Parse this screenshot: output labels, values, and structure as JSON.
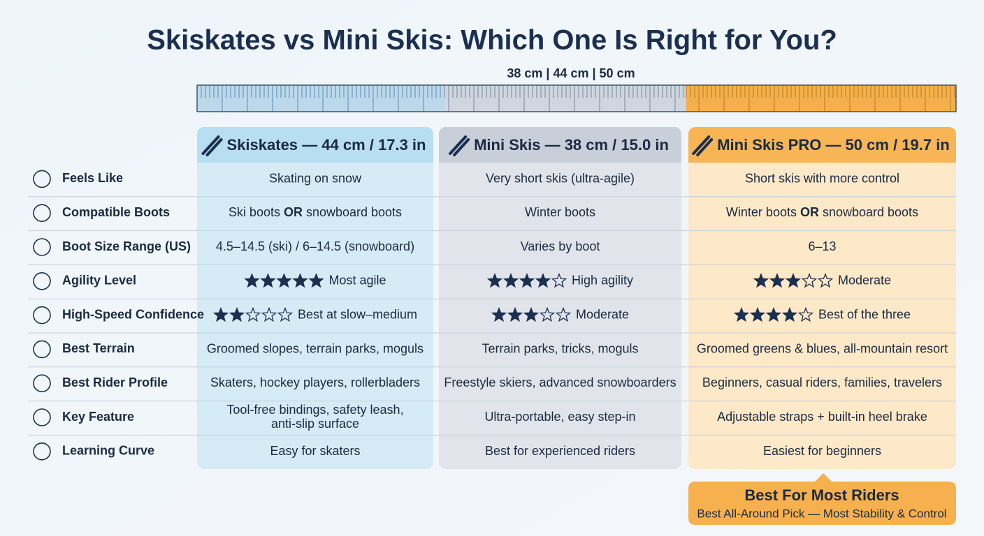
{
  "title": "Skiskates vs Mini Skis: Which One Is Right for You?",
  "ruler": {
    "label": "38 cm | 44 cm | 50 cm"
  },
  "table": {
    "columns": [
      "Skiskates — 44 cm / 17.3 in",
      "Mini Skis — 38 cm / 15.0 in",
      "Mini Skis PRO — 50 cm / 19.7 in"
    ],
    "rows": [
      {
        "label": "Feels Like",
        "cells": [
          {
            "text": "Skating on snow"
          },
          {
            "text": "Very short skis (ultra-agile)"
          },
          {
            "text": "Short skis with more control"
          }
        ]
      },
      {
        "label": "Compatible Boots",
        "cells": [
          {
            "text": "Ski boots ",
            "strong": "OR",
            "tail": " snowboard boots"
          },
          {
            "text": "Winter boots"
          },
          {
            "text": "Winter boots ",
            "strong": "OR",
            "tail": " snowboard boots"
          }
        ]
      },
      {
        "label": "Boot Size Range (US)",
        "cells": [
          {
            "text": "4.5–14.5 (ski) / 6–14.5 (snowboard)"
          },
          {
            "text": "Varies by boot"
          },
          {
            "text": "6–13"
          }
        ]
      },
      {
        "label": "Agility Level",
        "cells": [
          {
            "stars": 5,
            "max_stars": 5,
            "text": "Most agile"
          },
          {
            "stars": 4,
            "max_stars": 5,
            "text": "High agility"
          },
          {
            "stars": 3,
            "max_stars": 5,
            "text": "Moderate"
          }
        ]
      },
      {
        "label": "High-Speed Confidence",
        "cells": [
          {
            "stars": 2,
            "max_stars": 5,
            "text": "Best at slow–medium"
          },
          {
            "stars": 3,
            "max_stars": 5,
            "text": "Moderate"
          },
          {
            "stars": 4,
            "max_stars": 5,
            "text": "Best of the three"
          }
        ]
      },
      {
        "label": "Best Terrain",
        "cells": [
          {
            "text": "Groomed slopes, terrain parks, moguls"
          },
          {
            "text": "Terrain parks, tricks, moguls"
          },
          {
            "text": "Groomed greens & blues, all-mountain resort"
          }
        ]
      },
      {
        "label": "Best Rider Profile",
        "cells": [
          {
            "text": "Skaters, hockey players, rollerbladers"
          },
          {
            "text": "Freestyle skiers, advanced snowboarders"
          },
          {
            "text": "Beginners, casual riders, families, travelers"
          }
        ]
      },
      {
        "label": "Key Feature",
        "cells": [
          {
            "lines": [
              "Tool-free bindings, safety leash,",
              "anti-slip surface"
            ]
          },
          {
            "text": "Ultra-portable, easy step-in"
          },
          {
            "text": "Adjustable straps + built-in heel brake"
          }
        ]
      },
      {
        "label": "Learning Curve",
        "cells": [
          {
            "text": "Easy for skaters"
          },
          {
            "text": "Best for experienced riders"
          },
          {
            "text": "Easiest for beginners"
          }
        ]
      }
    ]
  },
  "badge": {
    "title": "Best For Most Riders",
    "subtitle": "Best All-Around Pick — Most Stability & Control"
  }
}
